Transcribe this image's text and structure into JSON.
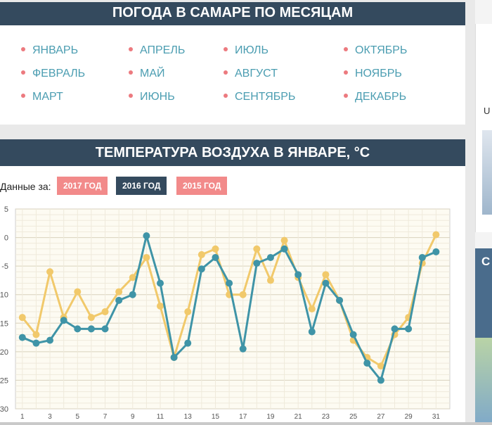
{
  "months_header": {
    "title": "ПОГОДА В САМАРЕ ПО МЕСЯЦАМ"
  },
  "months": [
    [
      "ЯНВАРЬ",
      "ФЕВРАЛЬ",
      "МАРТ"
    ],
    [
      "АПРЕЛЬ",
      "МАЙ",
      "ИЮНЬ"
    ],
    [
      "ИЮЛЬ",
      "АВГУСТ",
      "СЕНТЯБРЬ"
    ],
    [
      "ОКТЯБРЬ",
      "НОЯБРЬ",
      "ДЕКАБРЬ"
    ]
  ],
  "temp_header": {
    "title": "ТЕМПЕРАТУРА ВОЗДУХА В ЯНВАРЕ, °C"
  },
  "year_filter": {
    "label": "Данные за:",
    "years": [
      "2017 ГОД",
      "2016 ГОД",
      "2015 ГОД"
    ],
    "active": "2016 ГОД"
  },
  "sidebar": {
    "widget1_letter": "U",
    "widget2_letter": "C"
  },
  "colors": {
    "header_bg": "#344a5e",
    "link": "#4b9db1",
    "bullet": "#ec7a7f",
    "badge_pink": "#f28a8a",
    "series_yellow": "#f1c96b",
    "series_teal": "#3f94a7"
  },
  "chart_data": {
    "type": "line",
    "x": [
      1,
      2,
      3,
      4,
      5,
      6,
      7,
      8,
      9,
      10,
      11,
      12,
      13,
      14,
      15,
      16,
      17,
      18,
      19,
      20,
      21,
      22,
      23,
      24,
      25,
      26,
      27,
      28,
      29,
      30,
      31
    ],
    "xticks": [
      "1",
      "3",
      "5",
      "7",
      "9",
      "11",
      "13",
      "15",
      "17",
      "19",
      "21",
      "23",
      "25",
      "27",
      "29",
      "31"
    ],
    "yticks": [
      "5",
      "0",
      "-5",
      "-10",
      "-15",
      "-20",
      "-25",
      "-30"
    ],
    "ylim": [
      -30,
      5
    ],
    "xlim": [
      0.5,
      32
    ],
    "grid": true,
    "series": [
      {
        "color": "#f1c96b",
        "values": [
          -14,
          -17,
          -6,
          -14,
          -9.5,
          -14,
          -13,
          -9.5,
          -7,
          -3.5,
          -12,
          -21,
          -13,
          -3,
          -2,
          -10,
          -10,
          -2,
          -7.5,
          -0.5,
          -7,
          -12.5,
          -6.5,
          -11,
          -18,
          -21,
          -22.5,
          -17,
          -14,
          -4.5,
          0.5
        ]
      },
      {
        "color": "#3f94a7",
        "values": [
          -17.5,
          -18.5,
          -18,
          -14.5,
          -16,
          -16,
          -16,
          -11,
          -10,
          0.3,
          -8,
          -21,
          -18.5,
          -5.5,
          -3.5,
          -8,
          -19.5,
          -4.5,
          -3.5,
          -2,
          -6.5,
          -16.5,
          -8,
          -11,
          -17,
          -22,
          -25,
          -16,
          -16,
          -3.5,
          -2.5
        ]
      }
    ]
  }
}
